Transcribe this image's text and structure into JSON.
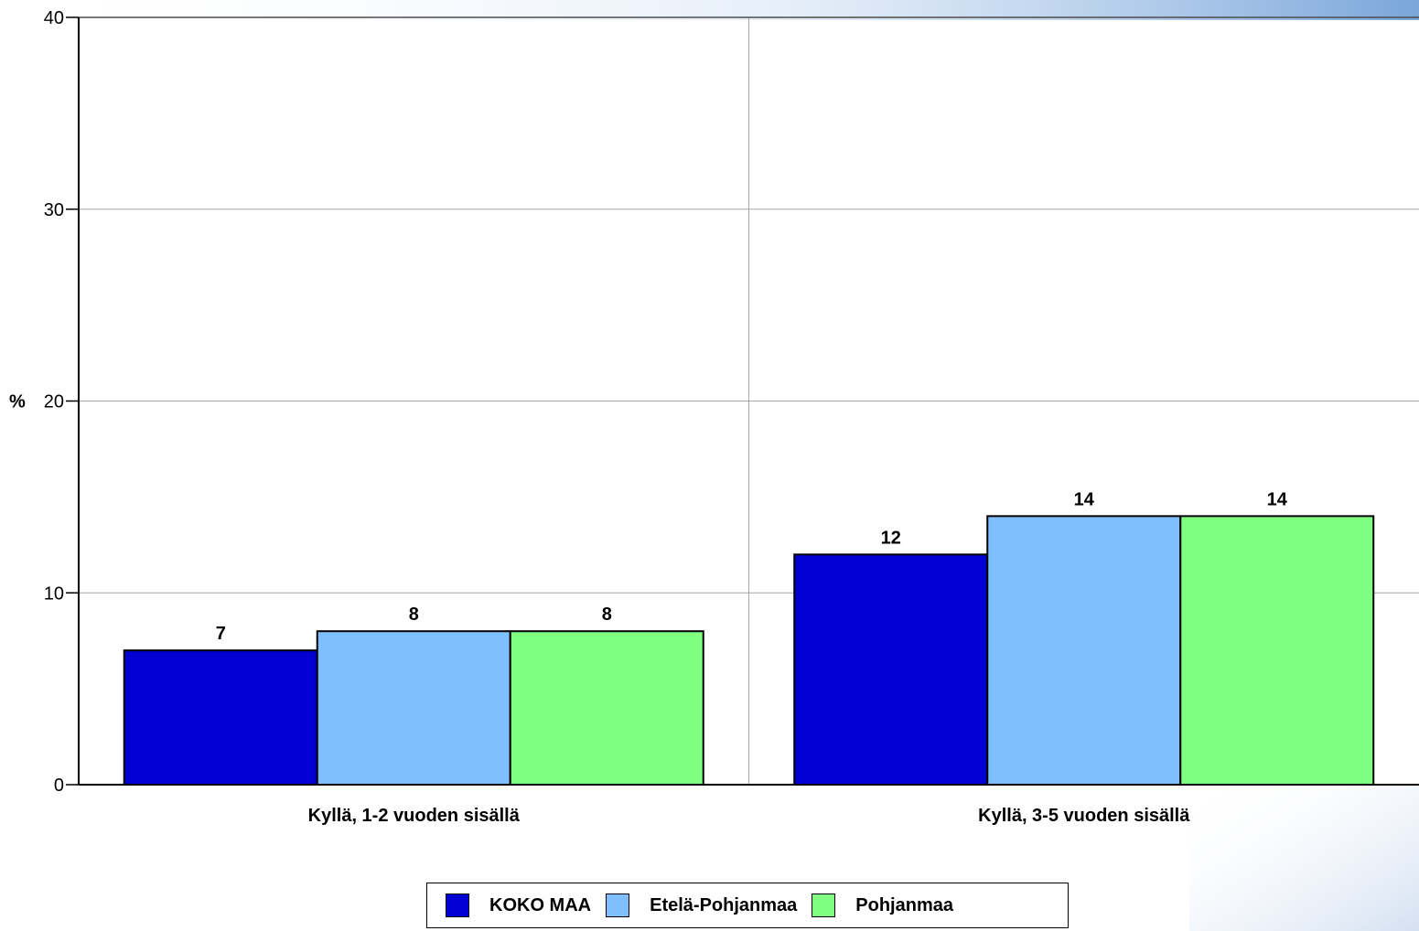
{
  "chart_data": {
    "type": "bar",
    "ylabel": "%",
    "ylim": [
      0,
      40
    ],
    "yticks": [
      0,
      10,
      20,
      30,
      40
    ],
    "grid": true,
    "legend_position": "bottom",
    "categories": [
      "Kyllä, 1-2 vuoden sisällä",
      "Kyllä, 3-5 vuoden sisällä"
    ],
    "series": [
      {
        "name": "KOKO MAA",
        "color": "#0000d2",
        "values": [
          7,
          12
        ]
      },
      {
        "name": "Etelä-Pohjanmaa",
        "color": "#80bfff",
        "values": [
          8,
          14
        ]
      },
      {
        "name": "Pohjanmaa",
        "color": "#80ff80",
        "values": [
          8,
          14
        ]
      }
    ]
  }
}
